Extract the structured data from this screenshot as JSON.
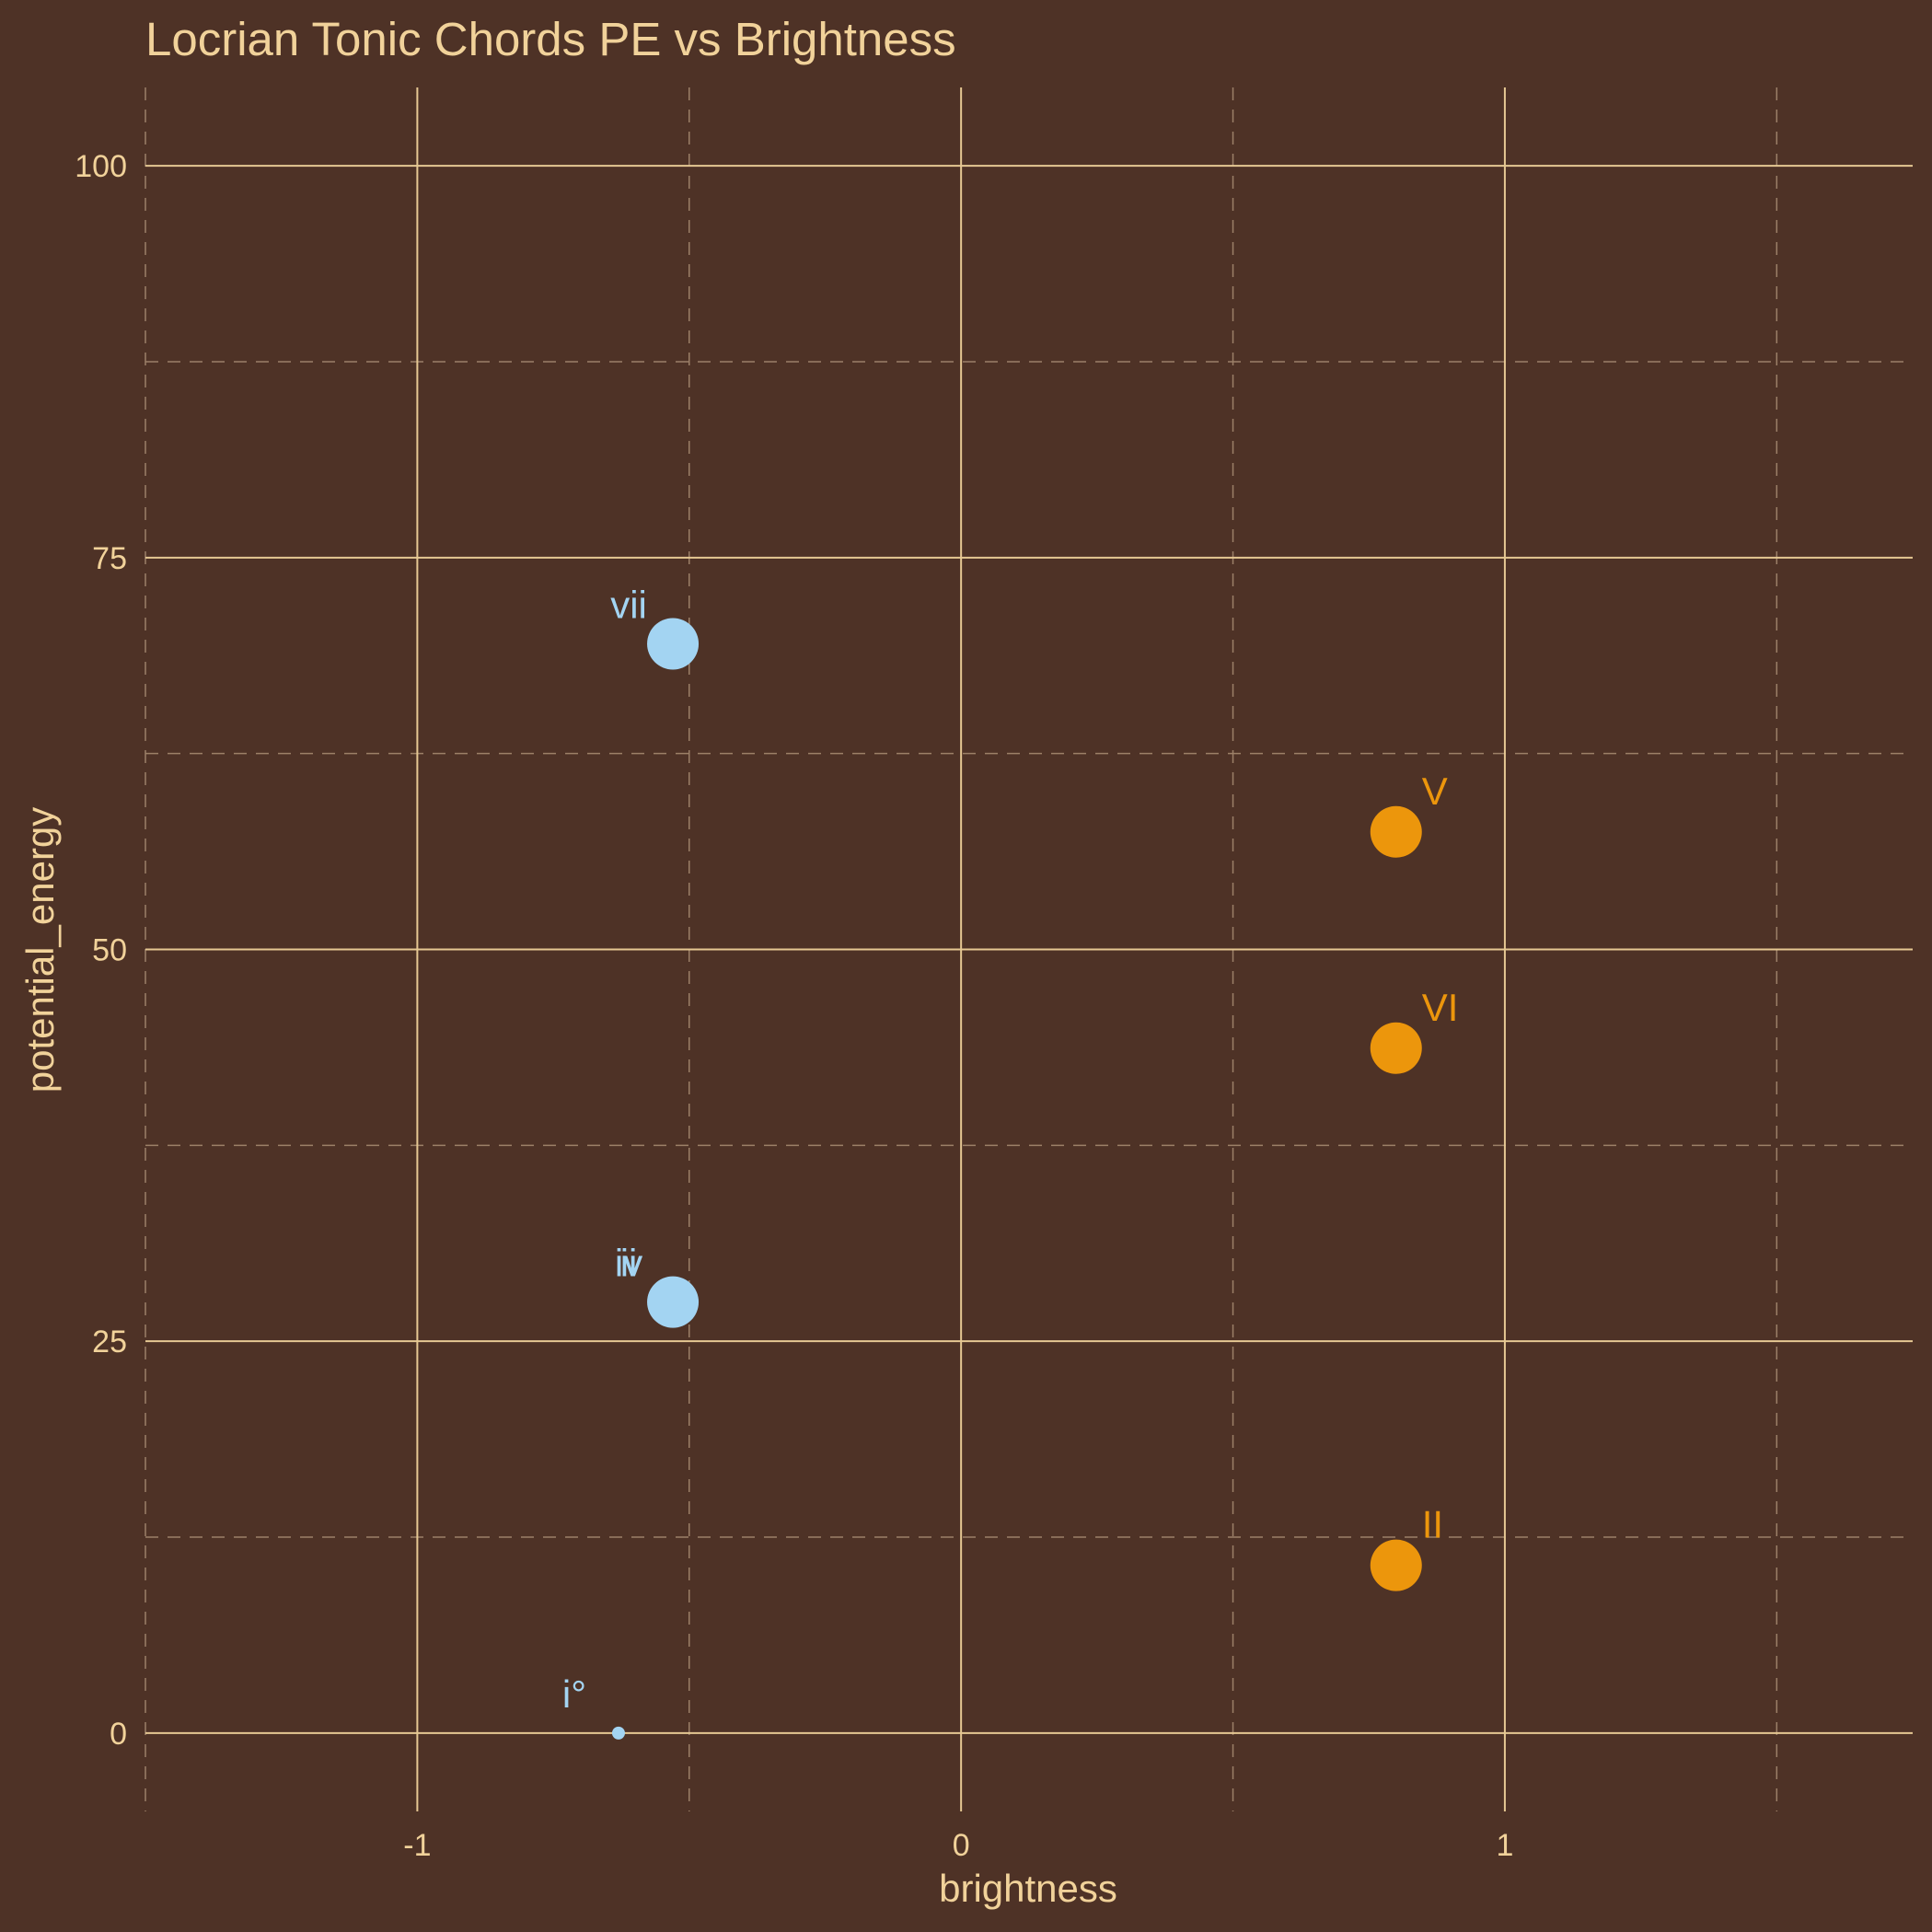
{
  "colors": {
    "background": "#4E3226",
    "text": "#F1D29A",
    "major_grid": "#E6C893",
    "minor_grid": "#9C8068",
    "minor_chord": "#A3D4F2",
    "major_chord": "#EC960C"
  },
  "chart_data": {
    "type": "scatter",
    "title": "Locrian Tonic Chords PE vs Brightness",
    "xlabel": "brightness",
    "ylabel": "potential_energy",
    "xlim": [
      -1.5,
      1.75
    ],
    "ylim": [
      -5,
      105
    ],
    "x_ticks": [
      -1,
      0,
      1
    ],
    "x_tick_labels": [
      "-1",
      "0",
      "1"
    ],
    "y_ticks": [
      0,
      25,
      50,
      75,
      100
    ],
    "y_tick_labels": [
      "0",
      "25",
      "50",
      "75",
      "100"
    ],
    "x_minor": [
      -1.5,
      -0.5,
      0.5,
      1.5
    ],
    "y_minor": [
      12.5,
      37.5,
      62.5,
      87.5
    ],
    "grid": true,
    "legend": "none",
    "points": [
      {
        "label": "i°",
        "x": -0.63,
        "y": 0,
        "size": "small",
        "group": "minor_chord"
      },
      {
        "label": "ii",
        "x": -0.53,
        "y": 27.5,
        "size": "large",
        "group": "minor_chord"
      },
      {
        "label": "iv",
        "x": -0.53,
        "y": 27.5,
        "size": "large",
        "group": "minor_chord"
      },
      {
        "label": "vii",
        "x": -0.53,
        "y": 69.5,
        "size": "large",
        "group": "minor_chord"
      },
      {
        "label": "II",
        "x": 0.8,
        "y": 10.7,
        "size": "large",
        "group": "major_chord"
      },
      {
        "label": "V",
        "x": 0.8,
        "y": 57.5,
        "size": "large",
        "group": "major_chord"
      },
      {
        "label": "VI",
        "x": 0.8,
        "y": 43.7,
        "size": "large",
        "group": "major_chord"
      }
    ]
  }
}
